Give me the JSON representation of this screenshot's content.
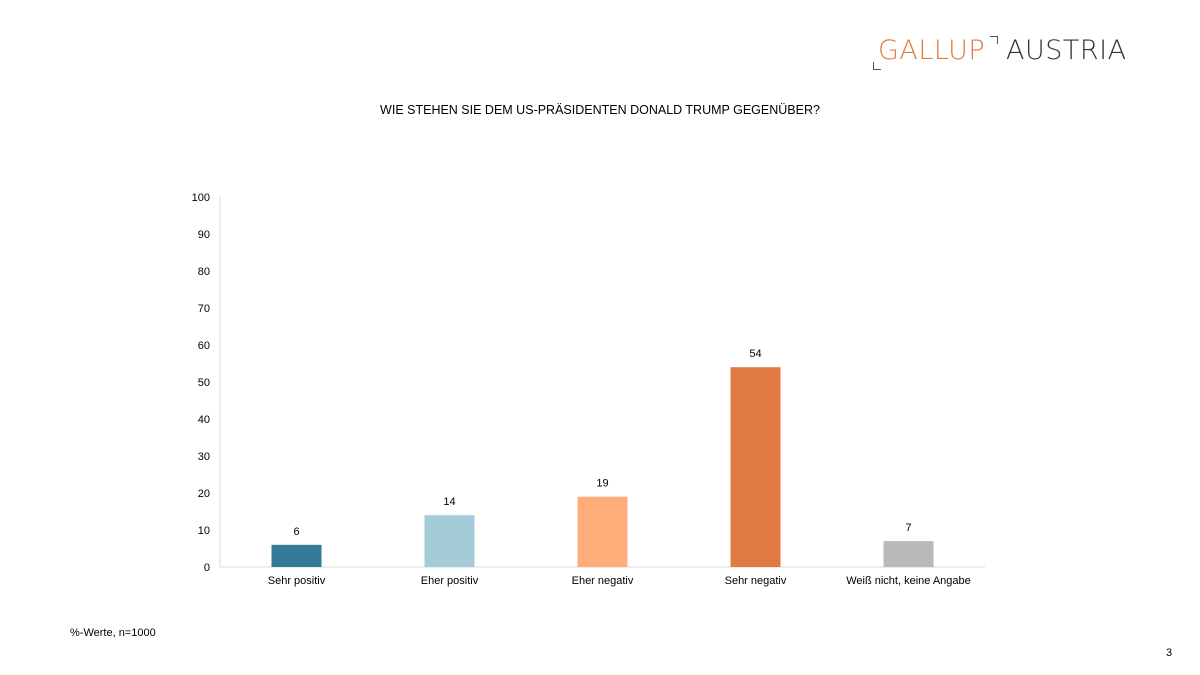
{
  "logo": {
    "brand_a": "GALLUP",
    "brand_b": "AUSTRIA"
  },
  "footnote": "%-Werte, n=1000",
  "page_number": "3",
  "colors": {
    "sehr_positiv": "#347b9a",
    "eher_positiv": "#a3ccd8",
    "eher_negativ": "#fdac7a",
    "sehr_negativ": "#e07a42",
    "weiss_nicht": "#b9b9b9",
    "logo_accent": "#e07a42"
  },
  "chart_data": {
    "type": "bar",
    "title": "WIE STEHEN SIE DEM US-PRÄSIDENTEN DONALD TRUMP GEGENÜBER?",
    "categories": [
      "Sehr positiv",
      "Eher positiv",
      "Eher negativ",
      "Sehr negativ",
      "Weiß nicht, keine Angabe"
    ],
    "values": [
      6,
      14,
      19,
      54,
      7
    ],
    "data_labels": [
      "6",
      "14",
      "19",
      "54",
      "7"
    ],
    "bar_colors": [
      "#347b9a",
      "#a3ccd8",
      "#fdac7a",
      "#e07a42",
      "#b9b9b9"
    ],
    "ylim": [
      0,
      100
    ],
    "yticks": [
      0,
      10,
      20,
      30,
      40,
      50,
      60,
      70,
      80,
      90,
      100
    ],
    "xlabel": "",
    "ylabel": "",
    "grid": false,
    "legend": "none"
  }
}
